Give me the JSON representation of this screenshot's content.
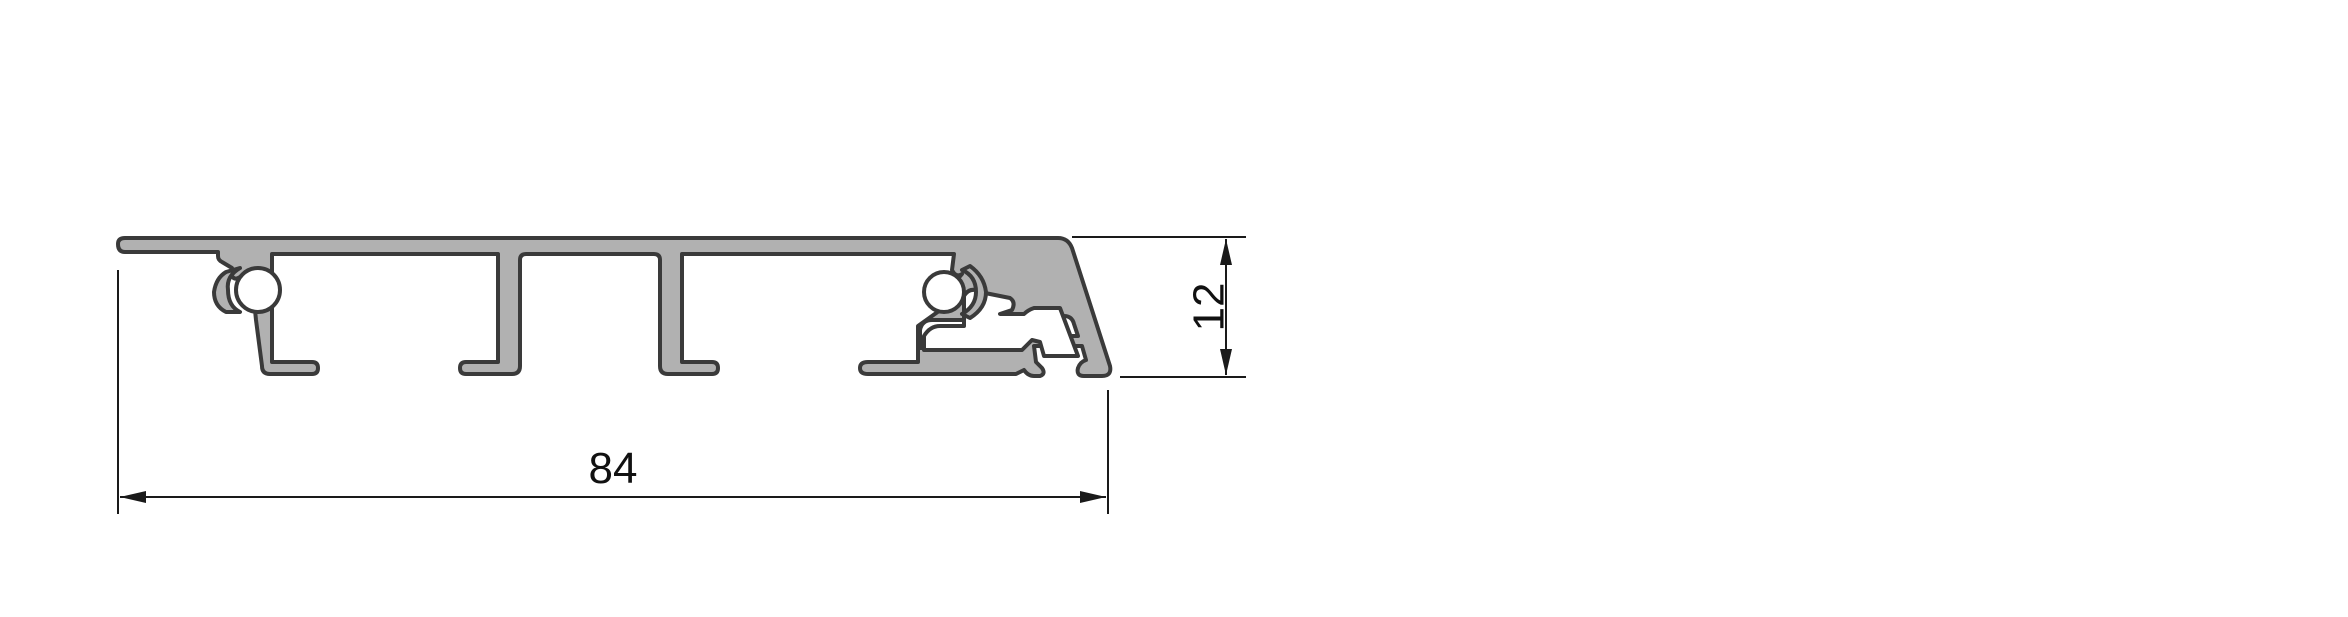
{
  "drawing": {
    "type": "aluminium profile cross-section",
    "profile_fill_color": "#b1b1b1",
    "profile_outline_color": "#3a3a3a",
    "dimension_color": "#1a1a1a"
  },
  "dimensions": {
    "width": {
      "value": "84"
    },
    "height": {
      "value": "12"
    }
  }
}
